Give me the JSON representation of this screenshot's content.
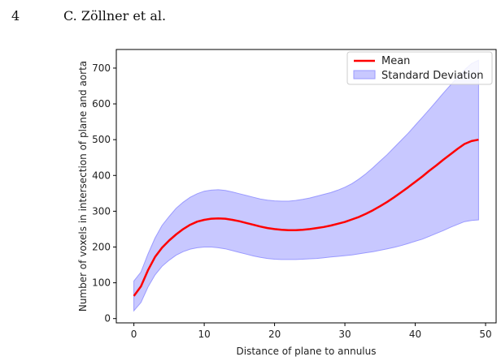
{
  "header": {
    "page_number": "4",
    "running_head": "C. Zöllner et al."
  },
  "chart_data": {
    "type": "line",
    "title": "",
    "xlabel": "Distance of plane to annulus",
    "ylabel": "Number of voxels in intersection of plane and aorta",
    "xlim": [
      -2.5,
      51.5
    ],
    "ylim": [
      -12,
      752
    ],
    "x_ticks": [
      0,
      10,
      20,
      30,
      40,
      50
    ],
    "y_ticks": [
      0,
      100,
      200,
      300,
      400,
      500,
      600,
      700
    ],
    "legend_position": "upper-right",
    "legend": [
      "Mean",
      "Standard Deviation"
    ],
    "colors": {
      "mean": "#ff0000",
      "band_fill": "#c8c8ff",
      "band_edge": "#9a9aff"
    },
    "series": [
      {
        "name": "Mean",
        "x": [
          0,
          1,
          2,
          3,
          4,
          5,
          6,
          7,
          8,
          9,
          10,
          11,
          12,
          13,
          14,
          15,
          16,
          17,
          18,
          19,
          20,
          21,
          22,
          23,
          24,
          25,
          26,
          27,
          28,
          29,
          30,
          31,
          32,
          33,
          34,
          35,
          36,
          37,
          38,
          39,
          40,
          41,
          42,
          43,
          44,
          45,
          46,
          47,
          48,
          49
        ],
        "y": [
          63,
          90,
          135,
          172,
          198,
          218,
          235,
          250,
          262,
          271,
          276,
          279,
          280,
          279,
          276,
          272,
          267,
          262,
          257,
          253,
          250,
          248,
          247,
          247,
          248,
          250,
          253,
          256,
          260,
          265,
          270,
          277,
          284,
          293,
          303,
          314,
          326,
          339,
          353,
          367,
          382,
          397,
          413,
          428,
          444,
          459,
          474,
          488,
          496,
          500
        ]
      },
      {
        "name": "Standard Deviation",
        "x": [
          0,
          1,
          2,
          3,
          4,
          5,
          6,
          7,
          8,
          9,
          10,
          11,
          12,
          13,
          14,
          15,
          16,
          17,
          18,
          19,
          20,
          21,
          22,
          23,
          24,
          25,
          26,
          27,
          28,
          29,
          30,
          31,
          32,
          33,
          34,
          35,
          36,
          37,
          38,
          39,
          40,
          41,
          42,
          43,
          44,
          45,
          46,
          47,
          48,
          49
        ],
        "upper": [
          105,
          130,
          180,
          225,
          260,
          285,
          308,
          325,
          339,
          349,
          356,
          359,
          360,
          358,
          354,
          349,
          344,
          339,
          334,
          331,
          329,
          328,
          328,
          330,
          333,
          337,
          342,
          347,
          352,
          359,
          367,
          377,
          390,
          405,
          422,
          440,
          458,
          478,
          498,
          518,
          540,
          562,
          584,
          607,
          630,
          652,
          674,
          695,
          712,
          722
        ],
        "lower": [
          22,
          45,
          88,
          122,
          146,
          163,
          177,
          187,
          194,
          198,
          200,
          200,
          198,
          195,
          190,
          185,
          180,
          175,
          171,
          168,
          166,
          165,
          165,
          165,
          166,
          167,
          168,
          170,
          172,
          174,
          176,
          178,
          181,
          184,
          187,
          191,
          195,
          199,
          204,
          210,
          216,
          222,
          230,
          238,
          246,
          255,
          263,
          271,
          274,
          276
        ]
      }
    ]
  }
}
